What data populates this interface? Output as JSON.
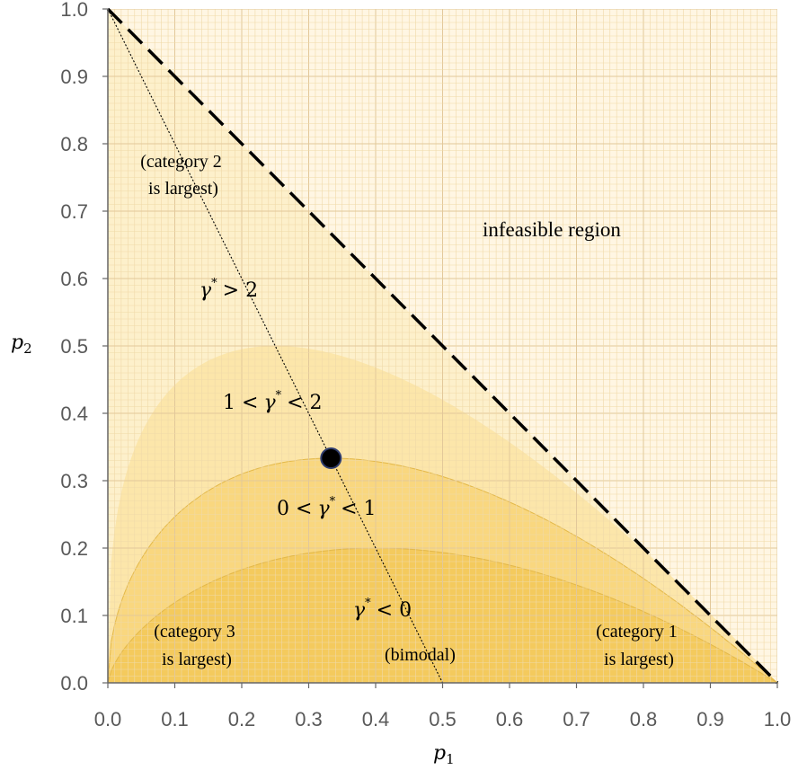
{
  "chart_data": {
    "type": "area",
    "xlabel": "p",
    "xlabel_sub": "1",
    "ylabel": "p",
    "ylabel_sub": "2",
    "xlim": [
      0,
      1
    ],
    "ylim": [
      0,
      1
    ],
    "x_ticks": [
      "0.0",
      "0.1",
      "0.2",
      "0.3",
      "0.4",
      "0.5",
      "0.6",
      "0.7",
      "0.8",
      "0.9",
      "1.0"
    ],
    "y_ticks": [
      "0.0",
      "0.1",
      "0.2",
      "0.3",
      "0.4",
      "0.5",
      "0.6",
      "0.7",
      "0.8",
      "0.9",
      "1.0"
    ],
    "grid": true,
    "boundary_line": {
      "style": "dashed",
      "x": [
        0,
        1
      ],
      "y": [
        1,
        0
      ]
    },
    "divider_line": {
      "style": "dotted",
      "x": [
        0,
        0.5
      ],
      "y": [
        1,
        0
      ]
    },
    "regions": [
      {
        "name": "gamma > 2",
        "color": "#fdefc8",
        "boundary_x": [
          0,
          1
        ],
        "boundary_y": [
          0,
          0
        ]
      },
      {
        "name": "1 < gamma < 2",
        "color": "#fce4a6",
        "peak_x": 0.25,
        "peak_y": 0.5
      },
      {
        "name": "0 < gamma < 1",
        "color": "#f8d57a",
        "peak_x": 0.3333,
        "peak_y": 0.3333
      },
      {
        "name": "gamma < 0",
        "color": "#f3c95a",
        "peak_x": 0.4,
        "peak_y": 0.2
      }
    ],
    "point": {
      "x": 0.3333,
      "y": 0.3333
    },
    "annotations": {
      "cat2_line1": "(category 2",
      "cat2_line2": "is largest)",
      "infeasible": "infeasible region",
      "gamma_gt2_op": "> 2",
      "gamma_1_2_pre": "1 <",
      "gamma_1_2_post": "< 2",
      "gamma_0_1_pre": "0 <",
      "gamma_0_1_post": "< 1",
      "gamma_lt0_op": "< 0",
      "cat3_line1": "(category 3",
      "cat3_line2": "is largest)",
      "bimodal": "(bimodal)",
      "cat1_line1": "(category 1",
      "cat1_line2": "is largest)",
      "gamma_symbol": "γ",
      "star": "*"
    }
  }
}
